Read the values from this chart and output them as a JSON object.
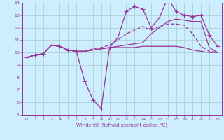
{
  "xlabel": "Windchill (Refroidissement éolien,°C)",
  "bg_color": "#cceeff",
  "grid_color": "#aacccc",
  "line_color": "#993399",
  "xlim": [
    -0.5,
    23.5
  ],
  "ylim": [
    5,
    14
  ],
  "xticks": [
    0,
    1,
    2,
    3,
    4,
    5,
    6,
    7,
    8,
    9,
    10,
    11,
    12,
    13,
    14,
    15,
    16,
    17,
    18,
    19,
    20,
    21,
    22,
    23
  ],
  "yticks": [
    5,
    6,
    7,
    8,
    9,
    10,
    11,
    12,
    13,
    14
  ],
  "series": {
    "line1_x": [
      0,
      1,
      2,
      3,
      4,
      5,
      6,
      7,
      8,
      9,
      10,
      11,
      12,
      13,
      14,
      15,
      16,
      17,
      18,
      19,
      20,
      21,
      22,
      23
    ],
    "line1_y": [
      9.6,
      9.8,
      9.9,
      10.6,
      10.5,
      10.2,
      10.1,
      10.1,
      10.2,
      10.3,
      10.4,
      10.4,
      10.4,
      10.4,
      10.5,
      10.5,
      10.5,
      10.5,
      10.5,
      10.4,
      10.2,
      10.1,
      10.0,
      10.0
    ],
    "line2_x": [
      0,
      1,
      2,
      3,
      4,
      5,
      6,
      7,
      8,
      9,
      10,
      11,
      12,
      13,
      14,
      15,
      16,
      17,
      18,
      19,
      20,
      21,
      22,
      23
    ],
    "line2_y": [
      9.6,
      9.8,
      9.9,
      10.6,
      10.5,
      10.2,
      10.1,
      7.7,
      6.2,
      5.5,
      10.4,
      11.2,
      13.3,
      13.7,
      13.5,
      12.0,
      12.8,
      14.4,
      13.3,
      13.0,
      12.9,
      13.0,
      11.4,
      10.5
    ],
    "line3_x": [
      0,
      1,
      2,
      3,
      4,
      5,
      6,
      7,
      8,
      9,
      10,
      11,
      12,
      13,
      14,
      15,
      16,
      17,
      18,
      19,
      20,
      21,
      22,
      23
    ],
    "line3_y": [
      9.6,
      9.8,
      9.9,
      10.6,
      10.5,
      10.2,
      10.1,
      10.1,
      10.3,
      10.4,
      10.6,
      11.0,
      11.5,
      11.8,
      12.1,
      11.8,
      12.1,
      12.3,
      12.3,
      12.2,
      11.5,
      10.5,
      10.1,
      10.0
    ],
    "line4_x": [
      0,
      1,
      2,
      3,
      4,
      5,
      6,
      7,
      8,
      9,
      10,
      11,
      12,
      13,
      14,
      15,
      16,
      17,
      18,
      19,
      20,
      21,
      22,
      23
    ],
    "line4_y": [
      9.6,
      9.8,
      9.9,
      10.6,
      10.5,
      10.2,
      10.1,
      10.1,
      10.2,
      10.3,
      10.4,
      10.5,
      10.6,
      10.7,
      10.8,
      11.5,
      12.0,
      12.5,
      12.7,
      12.6,
      12.5,
      12.5,
      10.4,
      10.0
    ]
  }
}
